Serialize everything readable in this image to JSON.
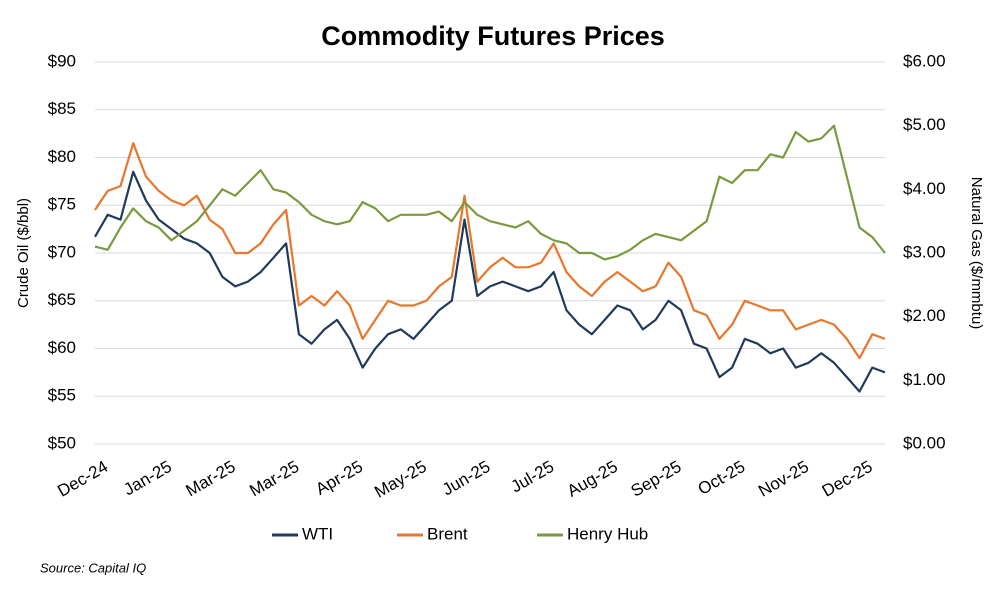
{
  "chart_data": {
    "type": "line",
    "title": "Commodity Futures Prices",
    "y_label": "Crude Oil ($/bbl)",
    "y2_label": "Natural Gas ($/mmbtu)",
    "source": "Source: Capital IQ",
    "categories": [
      "Dec-24",
      null,
      null,
      null,
      null,
      "Jan-25",
      null,
      null,
      null,
      null,
      "Mar-25",
      null,
      null,
      null,
      null,
      "Mar-25",
      null,
      null,
      null,
      null,
      "Apr-25",
      null,
      null,
      null,
      null,
      "May-25",
      null,
      null,
      null,
      null,
      "Jun-25",
      null,
      null,
      null,
      null,
      "Jul-25",
      null,
      null,
      null,
      null,
      "Aug-25",
      null,
      null,
      null,
      null,
      "Sep-25",
      null,
      null,
      null,
      null,
      "Oct-25",
      null,
      null,
      null,
      null,
      "Nov-25",
      null,
      null,
      null,
      null,
      "Dec-25",
      null,
      null
    ],
    "series": [
      {
        "name": "WTI",
        "color": "#203a5c",
        "axis": "y",
        "values": [
          71.7,
          74,
          73.5,
          78.5,
          75.5,
          73.5,
          72.5,
          71.5,
          71,
          70,
          67.5,
          66.5,
          67,
          68,
          69.5,
          71,
          61.5,
          60.5,
          62,
          63,
          61,
          58,
          60,
          61.5,
          62,
          61,
          62.5,
          64,
          65,
          73.5,
          65.5,
          66.5,
          67,
          66.5,
          66,
          66.5,
          68,
          64,
          62.5,
          61.5,
          63,
          64.5,
          64,
          62,
          63,
          65,
          64,
          60.5,
          60,
          57,
          58,
          61,
          60.5,
          59.5,
          60,
          58,
          58.5,
          59.5,
          58.5,
          57,
          55.5,
          58,
          57.5
        ]
      },
      {
        "name": "Brent",
        "color": "#e8762c",
        "axis": "y",
        "values": [
          74.5,
          76.5,
          77,
          81.5,
          78,
          76.5,
          75.5,
          75,
          76,
          73.5,
          72.5,
          70,
          70,
          71,
          73,
          74.5,
          64.5,
          65.5,
          64.5,
          66,
          64.5,
          61,
          63,
          65,
          64.5,
          64.5,
          65,
          66.5,
          67.5,
          76,
          67,
          68.5,
          69.5,
          68.5,
          68.5,
          69,
          71,
          68,
          66.5,
          65.5,
          67,
          68,
          67,
          66,
          66.5,
          69,
          67.5,
          64,
          63.5,
          61,
          62.5,
          65,
          64.5,
          64,
          64,
          62,
          62.5,
          63,
          62.5,
          61,
          59,
          61.5,
          61
        ]
      },
      {
        "name": "Henry Hub",
        "color": "#7a9a3f",
        "axis": "y2",
        "values": [
          3.1,
          3.05,
          3.4,
          3.7,
          3.5,
          3.4,
          3.2,
          3.35,
          3.5,
          3.75,
          4.0,
          3.9,
          4.1,
          4.3,
          4.0,
          3.95,
          3.8,
          3.6,
          3.5,
          3.45,
          3.5,
          3.8,
          3.7,
          3.5,
          3.6,
          3.6,
          3.6,
          3.65,
          3.5,
          3.8,
          3.6,
          3.5,
          3.45,
          3.4,
          3.5,
          3.3,
          3.2,
          3.15,
          3.0,
          3.0,
          2.9,
          2.95,
          3.05,
          3.2,
          3.3,
          3.25,
          3.2,
          3.35,
          3.5,
          4.2,
          4.1,
          4.3,
          4.3,
          4.55,
          4.5,
          4.9,
          4.75,
          4.8,
          5.0,
          4.2,
          3.4,
          3.25,
          3.0
        ]
      }
    ],
    "ylim": [
      50,
      90
    ],
    "yticks": [
      {
        "value": 50,
        "label": "$50"
      },
      {
        "value": 55,
        "label": "$55"
      },
      {
        "value": 60,
        "label": "$60"
      },
      {
        "value": 65,
        "label": "$65"
      },
      {
        "value": 70,
        "label": "$70"
      },
      {
        "value": 75,
        "label": "$75"
      },
      {
        "value": 80,
        "label": "$80"
      },
      {
        "value": 85,
        "label": "$85"
      },
      {
        "value": 90,
        "label": "$90"
      }
    ],
    "y2lim": [
      0,
      6
    ],
    "y2ticks": [
      {
        "value": 0,
        "label": "$0.00"
      },
      {
        "value": 1,
        "label": "$1.00"
      },
      {
        "value": 2,
        "label": "$2.00"
      },
      {
        "value": 3,
        "label": "$3.00"
      },
      {
        "value": 4,
        "label": "$4.00"
      },
      {
        "value": 5,
        "label": "$5.00"
      },
      {
        "value": 6,
        "label": "$6.00"
      }
    ],
    "grid": true,
    "legend": "bottom"
  }
}
